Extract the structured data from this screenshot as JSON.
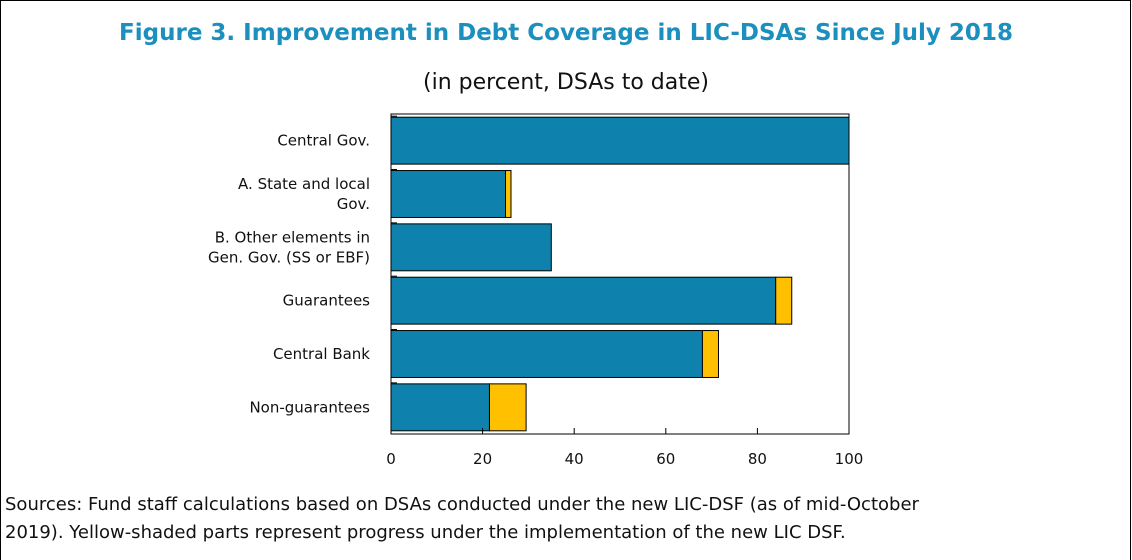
{
  "header": {
    "title": "Figure 3. Improvement in Debt Coverage in LIC-DSAs Since July 2018",
    "subtitle": "(in percent, DSAs to date)"
  },
  "chart_data": {
    "type": "bar",
    "orientation": "horizontal",
    "stacked": true,
    "categories": [
      [
        "Central Gov."
      ],
      [
        "A. State and local",
        "Gov."
      ],
      [
        "B. Other elements in",
        "Gen. Gov. (SS or EBF)"
      ],
      [
        "Guarantees"
      ],
      [
        "Central Bank"
      ],
      [
        "Non-guarantees"
      ]
    ],
    "series": [
      {
        "color": "#0e82ad",
        "values": [
          100,
          25,
          35,
          84,
          68,
          21.5
        ]
      },
      {
        "color": "#ffc000",
        "values": [
          0,
          1.2,
          0,
          3.5,
          3.5,
          8
        ]
      }
    ],
    "xlim": [
      0,
      100
    ],
    "xticks": [
      0,
      20,
      40,
      60,
      80,
      100
    ],
    "grid": false
  },
  "footer": {
    "line1": "Sources: Fund staff calculations based on DSAs conducted under the new LIC-DSF (as of mid-October",
    "line2": "2019). Yellow-shaded parts represent progress under the implementation of the new LIC DSF."
  }
}
